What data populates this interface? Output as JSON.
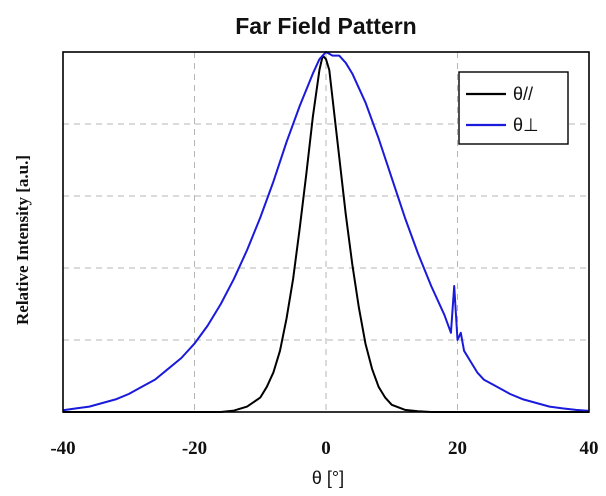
{
  "chart_data": {
    "type": "line",
    "title": "Far Field Pattern",
    "xlabel": "θ [°]",
    "ylabel": "Relative Intensity [a.u.]",
    "xlim": [
      -40,
      40
    ],
    "ylim": [
      0,
      1.0
    ],
    "xticks": [
      -40,
      -20,
      0,
      20,
      40
    ],
    "xtick_labels": [
      "-40",
      "-20",
      "0",
      "20",
      "40"
    ],
    "yticks": [
      0,
      0.2,
      0.4,
      0.6,
      0.8,
      1.0
    ],
    "grid": true,
    "legend_position": "top-right",
    "series": [
      {
        "name": "θ//",
        "color": "#000000",
        "x": [
          -40,
          -16,
          -14,
          -12,
          -10,
          -9,
          -8,
          -7,
          -6,
          -5,
          -4,
          -3,
          -2,
          -1,
          -0.5,
          0,
          0.5,
          1,
          2,
          3,
          4,
          5,
          6,
          7,
          8,
          9,
          10,
          12,
          14,
          16,
          40
        ],
        "y": [
          0,
          0,
          0.004,
          0.015,
          0.04,
          0.07,
          0.11,
          0.17,
          0.26,
          0.37,
          0.51,
          0.66,
          0.82,
          0.95,
          0.99,
          0.98,
          0.95,
          0.87,
          0.71,
          0.55,
          0.41,
          0.29,
          0.19,
          0.12,
          0.07,
          0.04,
          0.02,
          0.006,
          0.002,
          0,
          0
        ]
      },
      {
        "name": "θ⊥",
        "color": "#1a1adb",
        "x": [
          -40,
          -38,
          -36,
          -34,
          -32,
          -30,
          -28,
          -26,
          -24,
          -22,
          -20,
          -18,
          -16,
          -14,
          -12,
          -10,
          -8,
          -6,
          -4,
          -2,
          -1,
          0,
          1,
          2,
          3,
          4,
          6,
          8,
          10,
          12,
          14,
          16,
          18,
          19,
          19.5,
          20,
          20.5,
          21,
          22,
          23,
          24,
          26,
          28,
          30,
          32,
          34,
          36,
          38,
          40
        ],
        "y": [
          0.005,
          0.01,
          0.015,
          0.025,
          0.035,
          0.05,
          0.07,
          0.09,
          0.12,
          0.15,
          0.19,
          0.24,
          0.3,
          0.37,
          0.45,
          0.54,
          0.64,
          0.75,
          0.85,
          0.94,
          0.98,
          1.0,
          0.99,
          0.99,
          0.97,
          0.94,
          0.86,
          0.76,
          0.65,
          0.54,
          0.44,
          0.35,
          0.27,
          0.22,
          0.35,
          0.2,
          0.22,
          0.17,
          0.14,
          0.11,
          0.09,
          0.07,
          0.05,
          0.035,
          0.025,
          0.015,
          0.01,
          0.006,
          0.003
        ]
      }
    ]
  }
}
